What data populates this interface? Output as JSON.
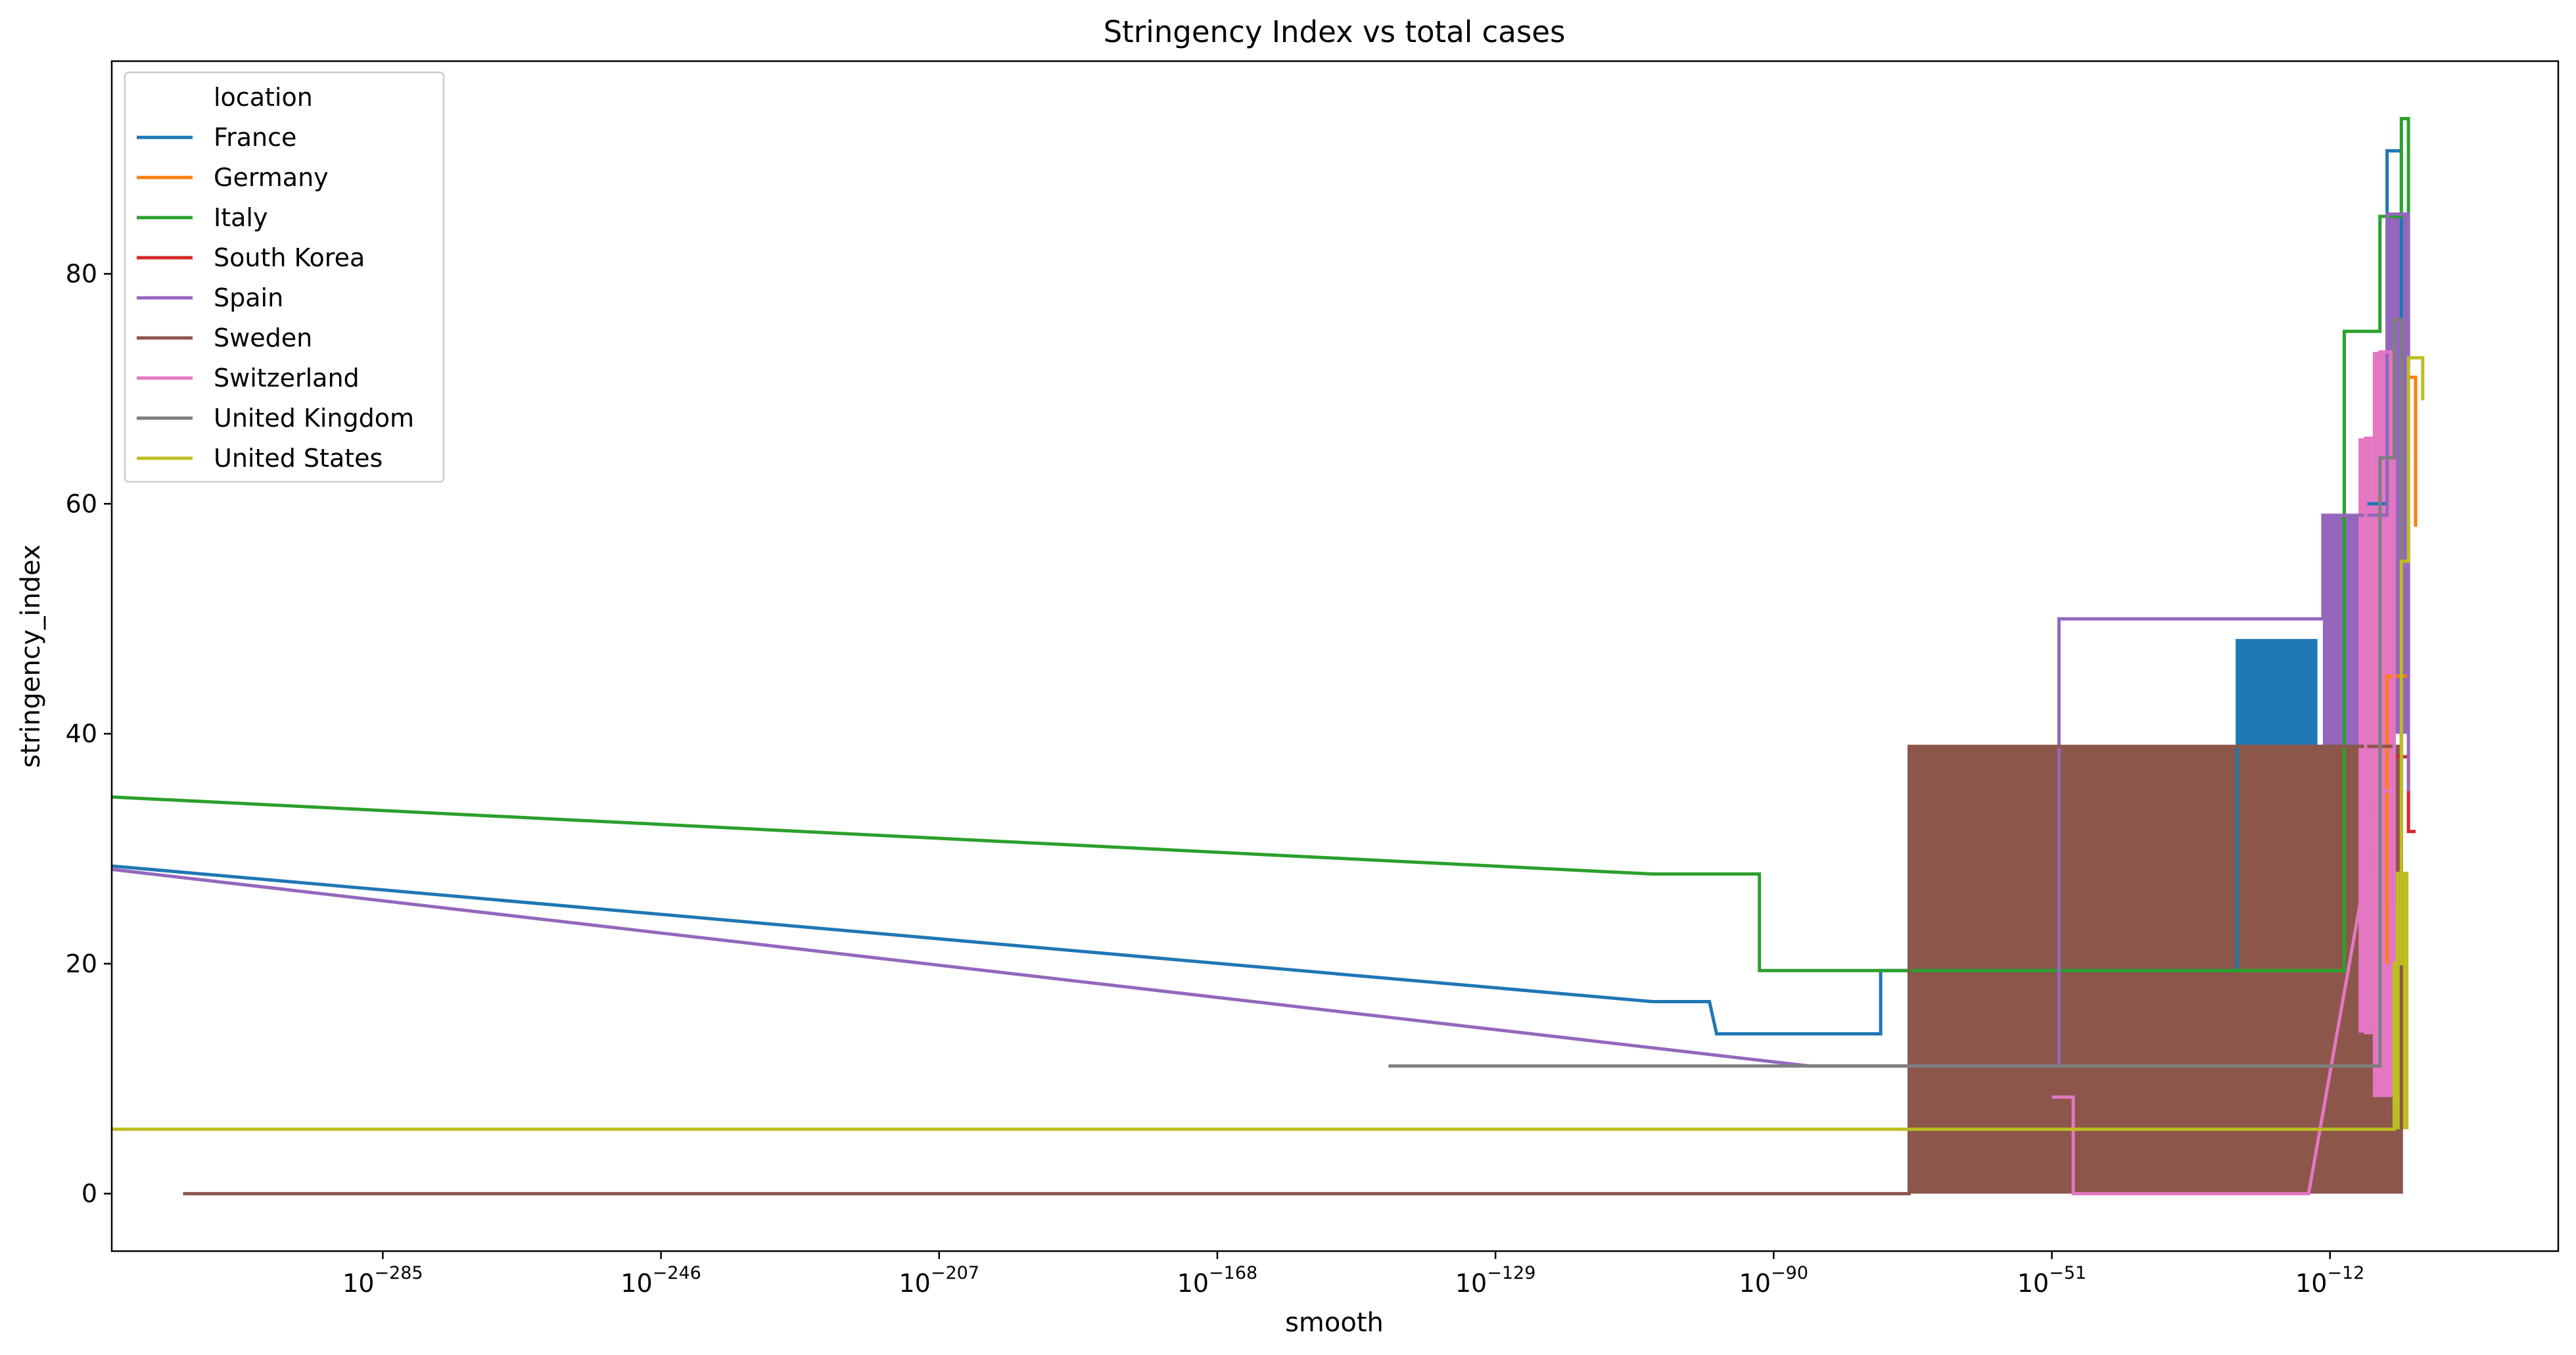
{
  "chart_data": {
    "type": "line",
    "title": "Stringency Index vs total cases",
    "xlabel": "smooth",
    "ylabel": "stringency_index",
    "x_scale": "log",
    "xlim_exponent": [
      -323,
      20
    ],
    "ylim": [
      -5,
      98.5
    ],
    "x_ticks": [
      {
        "base": "10",
        "exp": "−285",
        "value_exp": -285
      },
      {
        "base": "10",
        "exp": "−246",
        "value_exp": -246
      },
      {
        "base": "10",
        "exp": "−207",
        "value_exp": -207
      },
      {
        "base": "10",
        "exp": "−168",
        "value_exp": -168
      },
      {
        "base": "10",
        "exp": "−129",
        "value_exp": -129
      },
      {
        "base": "10",
        "exp": "−90",
        "value_exp": -90
      },
      {
        "base": "10",
        "exp": "−51",
        "value_exp": -51
      },
      {
        "base": "10",
        "exp": "−12",
        "value_exp": -12
      }
    ],
    "y_ticks": [
      0,
      20,
      40,
      60,
      80
    ],
    "grid": false,
    "legend": {
      "title": "location",
      "placement": "upper left"
    },
    "series": [
      {
        "name": "France",
        "color": "#1f77b4",
        "points": [
          [
            -323,
            28.5
          ],
          [
            -107,
            16.7
          ],
          [
            -99,
            16.7
          ],
          [
            -98,
            13.9
          ],
          [
            -75,
            13.9
          ],
          [
            -75,
            19.4
          ],
          [
            -25,
            19.4
          ],
          [
            -25,
            48.1
          ],
          [
            -14,
            48.1
          ],
          [
            -14,
            38.9
          ],
          [
            -7,
            38.9
          ],
          [
            -7,
            60
          ],
          [
            -4,
            60
          ],
          [
            -4,
            90.7
          ],
          [
            -2,
            90.7
          ],
          [
            -2,
            31.5
          ]
        ],
        "fill_blocks": [
          [
            -25,
            -14,
            38.9,
            48.1
          ]
        ]
      },
      {
        "name": "Germany",
        "color": "#ff7f0e",
        "points": [
          [
            -4,
            20
          ],
          [
            -4,
            45
          ],
          [
            -1,
            45
          ],
          [
            -1,
            71
          ],
          [
            0,
            71
          ],
          [
            0,
            58
          ]
        ]
      },
      {
        "name": "Italy",
        "color": "#2ca02c",
        "points": [
          [
            -323,
            34.5
          ],
          [
            -107,
            27.8
          ],
          [
            -92,
            27.8
          ],
          [
            -92,
            19.4
          ],
          [
            -10,
            19.4
          ],
          [
            -10,
            75
          ],
          [
            -5,
            75
          ],
          [
            -5,
            85
          ],
          [
            -2,
            85
          ],
          [
            -2,
            93.5
          ],
          [
            -1,
            93.5
          ],
          [
            -1,
            72
          ]
        ]
      },
      {
        "name": "South Korea",
        "color": "#d62728",
        "points": [
          [
            -3,
            25
          ],
          [
            -3,
            38
          ],
          [
            -1,
            38
          ],
          [
            -1,
            31.5
          ],
          [
            0,
            31.5
          ]
        ]
      },
      {
        "name": "Spain",
        "color": "#9467bd",
        "points": [
          [
            -323,
            28.2
          ],
          [
            -85,
            11.1
          ],
          [
            -50,
            11.1
          ],
          [
            -50,
            50
          ],
          [
            -13,
            50
          ],
          [
            -13,
            59
          ],
          [
            -4,
            59
          ],
          [
            -4,
            85.2
          ],
          [
            -1,
            85.2
          ],
          [
            -1,
            35
          ]
        ],
        "fill_blocks": [
          [
            -13,
            -3,
            30,
            59
          ],
          [
            -4,
            -1,
            40,
            85.2
          ]
        ]
      },
      {
        "name": "Sweden",
        "color": "#8c564b",
        "points": [
          [
            -313,
            0
          ],
          [
            -71,
            0
          ],
          [
            -71,
            38.9
          ],
          [
            -2,
            38.9
          ],
          [
            -2,
            0
          ]
        ],
        "fill_blocks": [
          [
            -71,
            -2,
            0,
            38.9
          ]
        ]
      },
      {
        "name": "Switzerland",
        "color": "#e377c2",
        "points": [
          [
            -51,
            8.4
          ],
          [
            -48,
            8.4
          ],
          [
            -48,
            0
          ],
          [
            -15,
            0
          ],
          [
            -5,
            35
          ],
          [
            -3,
            35
          ],
          [
            -3,
            14
          ],
          [
            -7,
            14
          ],
          [
            -7,
            65.7
          ],
          [
            -5,
            65.7
          ],
          [
            -5,
            73.2
          ],
          [
            -3,
            73.2
          ],
          [
            -3,
            8.4
          ]
        ],
        "fill_blocks": [
          [
            -8,
            -6,
            14,
            65.7
          ],
          [
            -6,
            -3,
            8.4,
            73.2
          ]
        ]
      },
      {
        "name": "United Kingdom",
        "color": "#7f7f7f",
        "points": [
          [
            -144,
            11.1
          ],
          [
            -5,
            11.1
          ],
          [
            -5,
            64
          ],
          [
            -3,
            64
          ],
          [
            -3,
            76
          ],
          [
            -2,
            76
          ],
          [
            -2,
            30
          ]
        ]
      },
      {
        "name": "United States",
        "color": "#bcbd22",
        "points": [
          [
            -323,
            5.6
          ],
          [
            -3,
            5.6
          ],
          [
            -3,
            20
          ],
          [
            -2,
            20
          ],
          [
            -2,
            55
          ],
          [
            -1,
            55
          ],
          [
            -1,
            72.7
          ],
          [
            1,
            72.7
          ],
          [
            1,
            69
          ]
        ],
        "fill_blocks": [
          [
            -3,
            -1,
            5.6,
            28
          ]
        ]
      }
    ]
  }
}
